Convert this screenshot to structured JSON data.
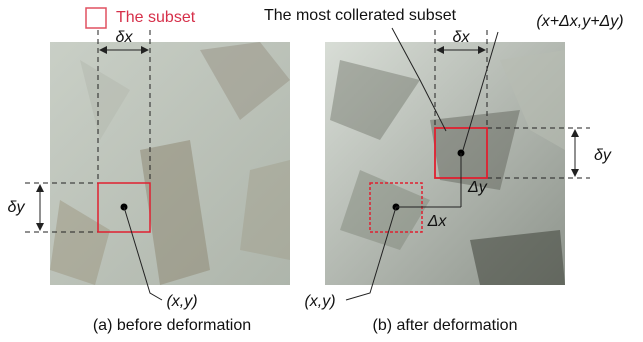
{
  "legend": {
    "label": "The subset"
  },
  "left": {
    "delta_x": "δx",
    "delta_y": "δy",
    "point_label": "(x,y)",
    "caption": "(a) before deformation"
  },
  "right": {
    "title_label": "The most collerated subset",
    "delta_x": "δx",
    "target_label": "(x+Δx,y+Δy)",
    "delta_y": "δy",
    "shift_y": "Δy",
    "shift_x": "Δx",
    "point_label": "(x,y)",
    "caption": "(b) after deformation"
  }
}
